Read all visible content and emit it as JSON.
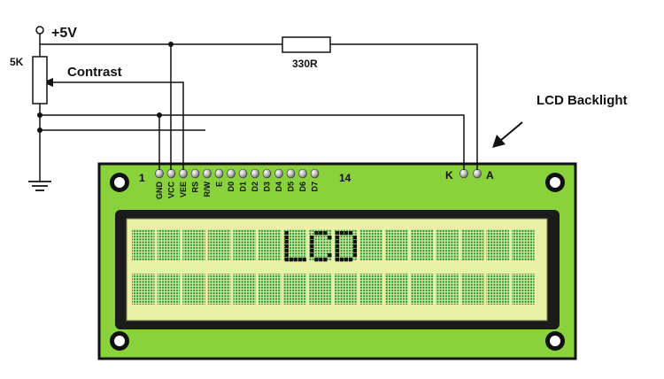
{
  "supply": {
    "label": "+5V",
    "color": "#d71f1f"
  },
  "potentiometer": {
    "value": "5K"
  },
  "contrast": {
    "label": "Contrast"
  },
  "resistor": {
    "value": "330R"
  },
  "backlight": {
    "label": "LCD Backlight"
  },
  "header": {
    "first_pin": "1",
    "last_pin": "14",
    "pins": [
      "GND",
      "VCC",
      "VEE",
      "RS",
      "R/W",
      "E",
      "D0",
      "D1",
      "D2",
      "D3",
      "D4",
      "D5",
      "D6",
      "D7"
    ]
  },
  "backlight_pins": {
    "cathode": "K",
    "anode": "A"
  },
  "display": {
    "text": "LCD",
    "rows": 2,
    "columns": 16,
    "board_color": "#8ad23c",
    "screen_color": "#e9f1a6",
    "pixel_color": "#2f9a3f"
  }
}
